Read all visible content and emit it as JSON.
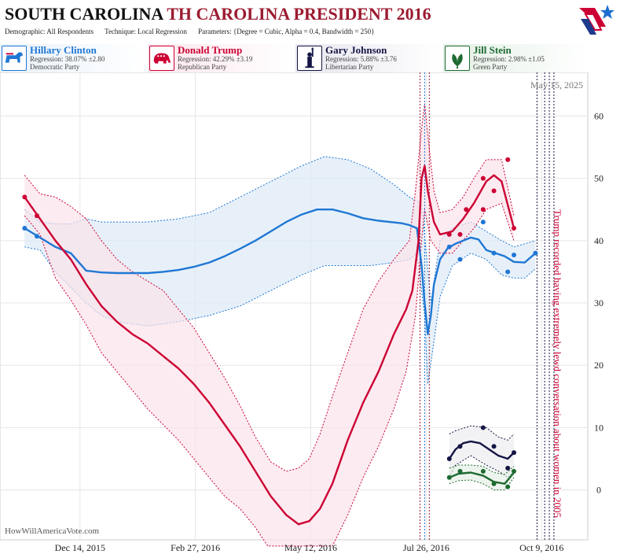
{
  "header": {
    "title_main": "SOUTH CAROLINA",
    "title_rest": "TH CAROLINA PRESIDENT 2016",
    "demographic": "Demographic: All Respondents",
    "technique": "Technique: Local Regression",
    "parameters": "Parameters: {Degree = Cubic, Alpha = 0.4, Bandwidth = 250}"
  },
  "legend": [
    {
      "name": "Hillary Clinton",
      "regression": "Regression: 38.07% ±2.80",
      "party": "Democratic Party",
      "color": "#1f77d4",
      "icon": "donkey-icon"
    },
    {
      "name": "Donald Trump",
      "regression": "Regression: 42.29% ±3.19",
      "party": "Republican Party",
      "color": "#cc0033",
      "icon": "elephant-icon"
    },
    {
      "name": "Gary Johnson",
      "regression": "Regression: 5.88% ±3.76",
      "party": "Libertarian Party",
      "color": "#151545",
      "icon": "liberty-statue-icon"
    },
    {
      "name": "Jill Stein",
      "regression": "Regression: 2.98% ±1.05",
      "party": "Green Party",
      "color": "#1e6b32",
      "icon": "leaf-icon"
    }
  ],
  "chart_data": {
    "type": "line",
    "date_label": "May 15, 2025",
    "x_ticks": [
      "Dec 14, 2015",
      "Feb 27, 2016",
      "May 12, 2016",
      "Jul 26, 2016",
      "Oct 9, 2016"
    ],
    "x_tick_days": [
      36,
      111,
      186,
      261,
      336
    ],
    "y_ticks": [
      0,
      10,
      20,
      30,
      40,
      50,
      60
    ],
    "ylim": [
      -8,
      67
    ],
    "xlim": [
      -16,
      366
    ],
    "event_lines_days": [
      257,
      260,
      263,
      333,
      338,
      341,
      344
    ],
    "annotation": "Trump recorded having extremely lewd conversation about women in 2005",
    "watermark": "HowWillAmericaVote.com",
    "series": [
      {
        "name": "Hillary Clinton",
        "color": "#1f77d4",
        "band_color": "#dde9f6",
        "points": [
          [
            0,
            42
          ],
          [
            8,
            40.7
          ],
          [
            276,
            39
          ],
          [
            283,
            37
          ],
          [
            298,
            43
          ],
          [
            305,
            38
          ],
          [
            314,
            35
          ],
          [
            318,
            37.7
          ],
          [
            332,
            38
          ]
        ],
        "curve": [
          [
            0,
            42
          ],
          [
            10,
            40.5
          ],
          [
            20,
            39
          ],
          [
            30,
            38
          ],
          [
            40,
            35.2
          ],
          [
            50,
            34.9
          ],
          [
            60,
            34.8
          ],
          [
            70,
            34.8
          ],
          [
            80,
            34.8
          ],
          [
            90,
            35
          ],
          [
            100,
            35.3
          ],
          [
            110,
            35.8
          ],
          [
            120,
            36.5
          ],
          [
            130,
            37.5
          ],
          [
            140,
            38.7
          ],
          [
            150,
            40
          ],
          [
            160,
            41.5
          ],
          [
            170,
            43
          ],
          [
            180,
            44.2
          ],
          [
            190,
            45
          ],
          [
            200,
            45
          ],
          [
            210,
            44.4
          ],
          [
            220,
            43.6
          ],
          [
            230,
            43.2
          ],
          [
            245,
            42.8
          ],
          [
            250,
            42.5
          ],
          [
            255,
            42
          ],
          [
            258,
            36
          ],
          [
            260,
            30
          ],
          [
            262,
            25
          ],
          [
            264,
            28
          ],
          [
            266,
            33
          ],
          [
            270,
            37
          ],
          [
            275,
            38.8
          ],
          [
            280,
            39.5
          ],
          [
            290,
            40.5
          ],
          [
            295,
            40.2
          ],
          [
            300,
            38.5
          ],
          [
            306,
            38
          ],
          [
            312,
            37.5
          ],
          [
            318,
            36.6
          ],
          [
            325,
            36.5
          ],
          [
            332,
            38
          ]
        ],
        "upper": [
          [
            0,
            45
          ],
          [
            10,
            43
          ],
          [
            20,
            42.7
          ],
          [
            30,
            42.7
          ],
          [
            40,
            43.5
          ],
          [
            50,
            43
          ],
          [
            60,
            43
          ],
          [
            80,
            43
          ],
          [
            100,
            43.5
          ],
          [
            120,
            44.5
          ],
          [
            140,
            47
          ],
          [
            160,
            49.5
          ],
          [
            180,
            52
          ],
          [
            195,
            53.5
          ],
          [
            210,
            53
          ],
          [
            225,
            51.5
          ],
          [
            240,
            49
          ],
          [
            250,
            47
          ],
          [
            258,
            46
          ],
          [
            264,
            30
          ],
          [
            270,
            40
          ],
          [
            278,
            42
          ],
          [
            290,
            43
          ],
          [
            300,
            41.5
          ],
          [
            310,
            40
          ],
          [
            318,
            39
          ],
          [
            325,
            39.5
          ],
          [
            332,
            40
          ]
        ],
        "lower": [
          [
            0,
            39
          ],
          [
            10,
            38.5
          ],
          [
            20,
            35
          ],
          [
            30,
            32.5
          ],
          [
            40,
            30
          ],
          [
            50,
            28
          ],
          [
            60,
            27
          ],
          [
            80,
            26.3
          ],
          [
            100,
            27
          ],
          [
            120,
            28
          ],
          [
            140,
            29.5
          ],
          [
            160,
            32
          ],
          [
            180,
            34.5
          ],
          [
            195,
            36
          ],
          [
            210,
            36
          ],
          [
            225,
            36
          ],
          [
            240,
            36.5
          ],
          [
            250,
            37
          ],
          [
            255,
            38
          ],
          [
            260,
            28
          ],
          [
            262,
            17
          ],
          [
            265,
            22
          ],
          [
            270,
            31
          ],
          [
            278,
            36
          ],
          [
            290,
            38
          ],
          [
            300,
            37
          ],
          [
            310,
            34.5
          ],
          [
            318,
            34
          ],
          [
            325,
            34
          ],
          [
            332,
            35.5
          ]
        ],
        "legend_value": "38.07"
      },
      {
        "name": "Donald Trump",
        "color": "#cc0033",
        "band_color": "#fbe3ea",
        "points": [
          [
            0,
            47
          ],
          [
            8,
            44
          ],
          [
            276,
            41
          ],
          [
            283,
            41
          ],
          [
            287,
            45
          ],
          [
            298,
            50
          ],
          [
            298,
            45
          ],
          [
            305,
            48
          ],
          [
            314,
            53
          ],
          [
            318,
            42
          ]
        ],
        "curve": [
          [
            0,
            47
          ],
          [
            10,
            43.5
          ],
          [
            20,
            40
          ],
          [
            30,
            37
          ],
          [
            40,
            33
          ],
          [
            50,
            29.5
          ],
          [
            60,
            27
          ],
          [
            70,
            25
          ],
          [
            80,
            23.5
          ],
          [
            90,
            21.5
          ],
          [
            100,
            19.5
          ],
          [
            110,
            17
          ],
          [
            120,
            14
          ],
          [
            130,
            10.5
          ],
          [
            140,
            7
          ],
          [
            150,
            3
          ],
          [
            160,
            -1
          ],
          [
            170,
            -4
          ],
          [
            178,
            -5.5
          ],
          [
            185,
            -5
          ],
          [
            192,
            -3
          ],
          [
            200,
            1
          ],
          [
            210,
            8
          ],
          [
            220,
            14
          ],
          [
            230,
            19
          ],
          [
            240,
            25
          ],
          [
            248,
            29
          ],
          [
            252,
            32
          ],
          [
            256,
            40
          ],
          [
            258,
            50
          ],
          [
            260,
            52
          ],
          [
            262,
            48
          ],
          [
            266,
            43
          ],
          [
            270,
            41
          ],
          [
            278,
            41.5
          ],
          [
            285,
            43.5
          ],
          [
            292,
            46
          ],
          [
            300,
            49.5
          ],
          [
            305,
            50.5
          ],
          [
            310,
            49.5
          ],
          [
            318,
            42
          ]
        ],
        "upper": [
          [
            0,
            50.5
          ],
          [
            10,
            47.5
          ],
          [
            20,
            47
          ],
          [
            30,
            45.5
          ],
          [
            40,
            43.5
          ],
          [
            50,
            40
          ],
          [
            60,
            37
          ],
          [
            70,
            35
          ],
          [
            80,
            33.5
          ],
          [
            90,
            32
          ],
          [
            100,
            29
          ],
          [
            110,
            26
          ],
          [
            120,
            22
          ],
          [
            130,
            18
          ],
          [
            140,
            13.5
          ],
          [
            150,
            8.5
          ],
          [
            160,
            4.5
          ],
          [
            170,
            3
          ],
          [
            178,
            3.5
          ],
          [
            185,
            5
          ],
          [
            192,
            9
          ],
          [
            200,
            15
          ],
          [
            210,
            22
          ],
          [
            220,
            29
          ],
          [
            230,
            33.5
          ],
          [
            240,
            37
          ],
          [
            250,
            40
          ],
          [
            254,
            48
          ],
          [
            258,
            58
          ],
          [
            260,
            62
          ],
          [
            262,
            57
          ],
          [
            266,
            48
          ],
          [
            270,
            44.5
          ],
          [
            278,
            45
          ],
          [
            285,
            47
          ],
          [
            292,
            50
          ],
          [
            300,
            53
          ],
          [
            310,
            53
          ],
          [
            318,
            44
          ]
        ],
        "lower": [
          [
            0,
            44
          ],
          [
            10,
            41
          ],
          [
            20,
            34
          ],
          [
            30,
            30.5
          ],
          [
            40,
            26.5
          ],
          [
            50,
            22
          ],
          [
            60,
            19
          ],
          [
            70,
            16
          ],
          [
            80,
            13
          ],
          [
            90,
            10.5
          ],
          [
            100,
            8
          ],
          [
            110,
            5
          ],
          [
            120,
            2
          ],
          [
            130,
            -1
          ],
          [
            140,
            -3
          ],
          [
            150,
            -6
          ],
          [
            158,
            -9
          ],
          [
            200,
            -9
          ],
          [
            210,
            -4
          ],
          [
            220,
            2
          ],
          [
            230,
            7
          ],
          [
            240,
            13
          ],
          [
            248,
            19
          ],
          [
            254,
            28
          ],
          [
            258,
            40
          ],
          [
            260,
            45
          ],
          [
            264,
            40
          ],
          [
            270,
            38
          ],
          [
            278,
            38
          ],
          [
            285,
            40
          ],
          [
            292,
            42
          ],
          [
            300,
            45
          ],
          [
            310,
            46
          ],
          [
            318,
            40
          ]
        ],
        "legend_value": "42.29"
      },
      {
        "name": "Gary Johnson",
        "color": "#151545",
        "band_color": "#ececf0",
        "points": [
          [
            276,
            5
          ],
          [
            283,
            7
          ],
          [
            298,
            10
          ],
          [
            305,
            7
          ],
          [
            314,
            3.5
          ],
          [
            318,
            6
          ]
        ],
        "curve": [
          [
            276,
            5
          ],
          [
            280,
            6.5
          ],
          [
            285,
            7.5
          ],
          [
            290,
            7.8
          ],
          [
            296,
            7.5
          ],
          [
            302,
            6.5
          ],
          [
            308,
            5.5
          ],
          [
            314,
            5
          ],
          [
            318,
            6
          ]
        ],
        "upper": [
          [
            276,
            9
          ],
          [
            280,
            9.5
          ],
          [
            290,
            10.3
          ],
          [
            300,
            10
          ],
          [
            308,
            8.5
          ],
          [
            314,
            8
          ],
          [
            318,
            9
          ]
        ],
        "lower": [
          [
            276,
            2
          ],
          [
            280,
            4
          ],
          [
            290,
            5.5
          ],
          [
            300,
            4
          ],
          [
            308,
            3
          ],
          [
            314,
            2
          ],
          [
            318,
            3
          ]
        ],
        "legend_value": "5.88"
      },
      {
        "name": "Jill Stein",
        "color": "#1e6b32",
        "band_color": "#e6f0e6",
        "points": [
          [
            276,
            2
          ],
          [
            283,
            3
          ],
          [
            298,
            3
          ],
          [
            305,
            1
          ],
          [
            314,
            0.5
          ],
          [
            318,
            3
          ]
        ],
        "curve": [
          [
            276,
            2
          ],
          [
            282,
            2.6
          ],
          [
            290,
            2.8
          ],
          [
            298,
            2.3
          ],
          [
            305,
            1.3
          ],
          [
            312,
            1
          ],
          [
            318,
            2.8
          ]
        ],
        "upper": [
          [
            276,
            3.5
          ],
          [
            282,
            4
          ],
          [
            290,
            4
          ],
          [
            298,
            3.8
          ],
          [
            305,
            2.8
          ],
          [
            312,
            2.5
          ],
          [
            318,
            3.8
          ]
        ],
        "lower": [
          [
            276,
            1
          ],
          [
            282,
            1.5
          ],
          [
            290,
            1.6
          ],
          [
            298,
            1
          ],
          [
            305,
            0
          ],
          [
            312,
            0
          ],
          [
            318,
            2
          ]
        ],
        "legend_value": "2.98"
      }
    ]
  }
}
